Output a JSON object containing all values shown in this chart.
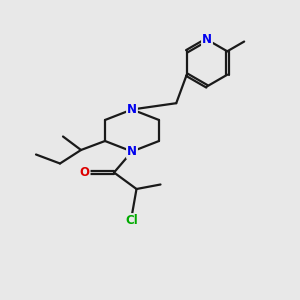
{
  "background_color": "#e8e8e8",
  "bond_color": "#1a1a1a",
  "N_color": "#0000ee",
  "O_color": "#dd0000",
  "Cl_color": "#00aa00",
  "line_width": 1.6,
  "font_size": 8.5,
  "fig_size": [
    3.0,
    3.0
  ],
  "dpi": 100,
  "xlim": [
    0,
    10
  ],
  "ylim": [
    0,
    10
  ]
}
